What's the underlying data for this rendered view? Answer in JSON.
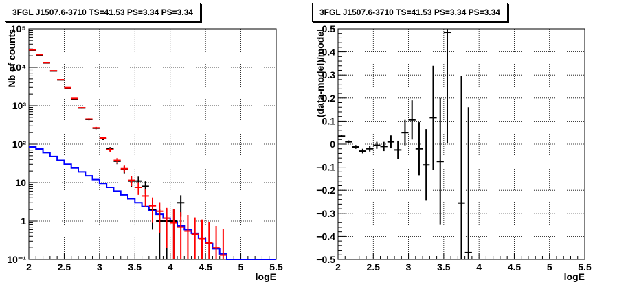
{
  "chart_data": [
    {
      "type": "line",
      "title": "3FGL J1507.6-3710 TS=41.53 PS=3.34 PS=3.34",
      "xlabel": "logE",
      "ylabel": "Nb of counts",
      "xlim": [
        2,
        5.5
      ],
      "ylim": [
        0.1,
        100000
      ],
      "yscale": "log",
      "grid": true,
      "x_ticks": [
        "2",
        "2.5",
        "3",
        "3.5",
        "4",
        "4.5",
        "5",
        "5.5"
      ],
      "y_ticks": [
        {
          "value": 0.1,
          "label": "10⁻¹"
        },
        {
          "value": 1,
          "label": "1"
        },
        {
          "value": 10,
          "label": "10"
        },
        {
          "value": 100,
          "label": "10²"
        },
        {
          "value": 1000,
          "label": "10³"
        },
        {
          "value": 10000,
          "label": "10⁴"
        },
        {
          "value": 100000,
          "label": "10⁵"
        }
      ],
      "series": [
        {
          "kind": "step",
          "color": "#0000ff",
          "bin_edges": [
            2.0,
            2.1,
            2.2,
            2.3,
            2.4,
            2.5,
            2.6,
            2.7,
            2.8,
            2.9,
            3.0,
            3.1,
            3.2,
            3.3,
            3.4,
            3.5,
            3.6,
            3.7,
            3.8,
            3.9,
            4.0,
            4.1,
            4.2,
            4.3,
            4.4,
            4.5,
            4.6,
            4.7,
            4.8,
            4.9,
            5.0,
            5.1,
            5.2,
            5.3,
            5.4,
            5.5
          ],
          "values": [
            85,
            75,
            60,
            48,
            38,
            30,
            24,
            19,
            15,
            12,
            9.5,
            7.5,
            6,
            4.8,
            3.8,
            3.0,
            2.4,
            1.9,
            1.5,
            1.2,
            0.95,
            0.75,
            0.6,
            0.48,
            0.36,
            0.26,
            0.19,
            0.14,
            0.1,
            0.1,
            0.1,
            0.1,
            0.1,
            0.1,
            0.1
          ]
        },
        {
          "kind": "errorbar",
          "color": "#000000",
          "x": [
            2.05,
            2.15,
            2.25,
            2.35,
            2.45,
            2.55,
            2.65,
            2.75,
            2.85,
            2.95,
            3.05,
            3.15,
            3.25,
            3.35,
            3.45,
            3.55,
            3.65,
            3.75,
            3.85,
            3.95,
            4.05,
            4.15
          ],
          "y": [
            28000,
            21000,
            13000,
            8000,
            4700,
            2900,
            1500,
            870,
            440,
            260,
            140,
            75,
            36,
            22,
            11,
            11,
            8,
            2,
            1,
            1,
            1,
            3
          ],
          "yerr_low": [
            150,
            130,
            110,
            90,
            70,
            55,
            40,
            30,
            21,
            16,
            12,
            9,
            6,
            4.7,
            3.3,
            3.3,
            2.8,
            1.4,
            1,
            1,
            1,
            1.7
          ],
          "yerr_high": [
            150,
            130,
            110,
            90,
            70,
            55,
            40,
            30,
            21,
            16,
            12,
            9,
            6,
            4.7,
            3.3,
            3.3,
            2.8,
            1.4,
            1,
            1,
            1,
            1.7
          ]
        },
        {
          "kind": "errorbar",
          "color": "#ff0000",
          "x": [
            2.05,
            2.15,
            2.25,
            2.35,
            2.45,
            2.55,
            2.65,
            2.75,
            2.85,
            2.95,
            3.05,
            3.15,
            3.25,
            3.35,
            3.45,
            3.55,
            3.65,
            3.75,
            3.85,
            3.95,
            4.05,
            4.15,
            4.25,
            4.35,
            4.45,
            4.55,
            4.65,
            4.75
          ],
          "y": [
            28500,
            21500,
            13200,
            8100,
            4750,
            2950,
            1550,
            880,
            450,
            265,
            145,
            72,
            38,
            23,
            11.5,
            7.5,
            4.5,
            2.5,
            1.8,
            1.2,
            0.9,
            0.7,
            0.55,
            0.45,
            0.35,
            0.27,
            0.2,
            0.13
          ],
          "yerr_low": [
            170,
            150,
            115,
            90,
            69,
            54,
            39,
            30,
            21,
            16,
            12,
            8.5,
            6,
            4.8,
            3.4,
            2.7,
            2.1,
            1.6,
            1.3,
            1.0,
            0.8,
            0.6,
            0.45,
            0.35,
            0.25,
            0.17,
            0.1,
            0.03
          ],
          "yerr_high": [
            170,
            150,
            115,
            90,
            69,
            54,
            39,
            30,
            21,
            16,
            12,
            8.5,
            6,
            4.8,
            3.4,
            2.7,
            2.1,
            1.6,
            1.3,
            1.0,
            1.1,
            1.0,
            0.9,
            0.8,
            0.75,
            0.65,
            0.55,
            0.5
          ]
        }
      ]
    },
    {
      "type": "scatter",
      "title": "3FGL J1507.6-3710 TS=41.53 PS=3.34 PS=3.34",
      "xlabel": "logE",
      "ylabel": "(data-model)/model",
      "xlim": [
        2,
        5.5
      ],
      "ylim": [
        -0.5,
        0.5
      ],
      "grid": true,
      "x_ticks": [
        "2",
        "2.5",
        "3",
        "3.5",
        "4",
        "4.5",
        "5",
        "5.5"
      ],
      "y_ticks": [
        "−0.5",
        "−0.4",
        "−0.3",
        "−0.2",
        "−0.1",
        "0",
        "0.1",
        "0.2",
        "0.3",
        "0.4",
        "0.5"
      ],
      "series": [
        {
          "kind": "errorbar",
          "color": "#000000",
          "x": [
            2.05,
            2.15,
            2.25,
            2.35,
            2.45,
            2.55,
            2.65,
            2.75,
            2.85,
            2.95,
            3.05,
            3.15,
            3.25,
            3.35,
            3.45,
            3.55,
            3.75,
            3.85
          ],
          "y": [
            0.035,
            0.01,
            -0.012,
            -0.03,
            -0.02,
            -0.005,
            -0.01,
            0.01,
            -0.025,
            0.05,
            0.105,
            -0.02,
            -0.09,
            0.115,
            -0.075,
            0.485,
            -0.255,
            -0.47
          ],
          "yerr": [
            0.005,
            0.006,
            0.008,
            0.01,
            0.012,
            0.015,
            0.02,
            0.028,
            0.04,
            0.055,
            0.085,
            0.115,
            0.155,
            0.225,
            0.275,
            0.48,
            0.55,
            0.63
          ]
        }
      ]
    }
  ]
}
